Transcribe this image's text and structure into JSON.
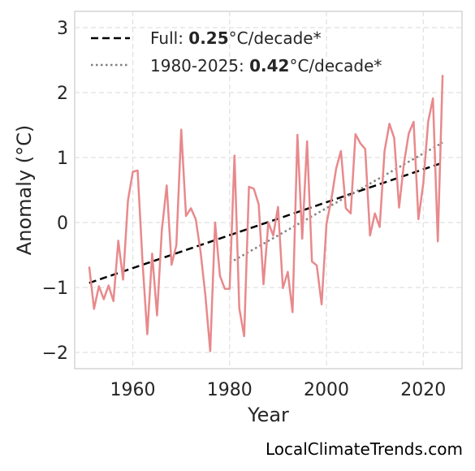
{
  "chart_data": {
    "type": "line",
    "xlabel": "Year",
    "ylabel": "Anomaly (°C)",
    "xlim": [
      1948,
      2028
    ],
    "ylim": [
      -2.25,
      3.25
    ],
    "xticks": [
      1960,
      1980,
      2000,
      2020
    ],
    "xtick_labels": [
      "1960",
      "1980",
      "2000",
      "2020"
    ],
    "yticks": [
      -2,
      -1,
      0,
      1,
      2,
      3
    ],
    "ytick_labels": [
      "−2",
      "−1",
      "0",
      "1",
      "2",
      "3"
    ],
    "grid": true,
    "legend_position": "top-left",
    "series": [
      {
        "color": "#e8898c",
        "x": [
          1951,
          1952,
          1953,
          1954,
          1955,
          1956,
          1957,
          1958,
          1959,
          1960,
          1961,
          1962,
          1963,
          1964,
          1965,
          1966,
          1967,
          1968,
          1969,
          1970,
          1971,
          1972,
          1973,
          1974,
          1975,
          1976,
          1977,
          1978,
          1979,
          1980,
          1981,
          1982,
          1983,
          1984,
          1985,
          1986,
          1987,
          1988,
          1989,
          1990,
          1991,
          1992,
          1993,
          1994,
          1995,
          1996,
          1997,
          1998,
          1999,
          2000,
          2001,
          2002,
          2003,
          2004,
          2005,
          2006,
          2007,
          2008,
          2009,
          2010,
          2011,
          2012,
          2013,
          2014,
          2015,
          2016,
          2017,
          2018,
          2019,
          2020,
          2021,
          2022,
          2023,
          2024
        ],
        "y": [
          -0.68,
          -1.33,
          -0.98,
          -1.18,
          -0.97,
          -1.21,
          -0.28,
          -0.88,
          0.34,
          0.78,
          0.8,
          -0.6,
          -1.72,
          -0.48,
          -1.43,
          -0.12,
          0.57,
          -0.65,
          -0.35,
          1.43,
          0.1,
          0.22,
          0.05,
          -0.45,
          -1.13,
          -1.98,
          0.0,
          -0.82,
          -1.02,
          -1.02,
          1.03,
          -1.32,
          -1.75,
          0.55,
          0.52,
          0.28,
          -0.95,
          0.0,
          -0.2,
          0.24,
          -1.01,
          -0.76,
          -1.38,
          1.35,
          -0.25,
          1.25,
          -0.6,
          -0.66,
          -1.26,
          -0.02,
          0.35,
          0.83,
          1.1,
          0.22,
          0.14,
          1.36,
          1.22,
          1.13,
          -0.2,
          0.14,
          -0.07,
          1.1,
          1.52,
          1.3,
          0.23,
          0.9,
          1.37,
          1.55,
          0.05,
          0.6,
          1.55,
          1.91,
          -0.29,
          2.27
        ]
      }
    ],
    "trend_lines": [
      {
        "style": "dashed",
        "color": "#000000",
        "x": [
          1951,
          2024
        ],
        "y": [
          -0.93,
          0.92
        ],
        "label_prefix": "Full: ",
        "label_value": "0.25",
        "label_suffix": "°C/decade*"
      },
      {
        "style": "dotted",
        "color": "#808080",
        "x": [
          1980,
          2024
        ],
        "y": [
          -0.62,
          1.23
        ],
        "label_prefix": "1980-2025: ",
        "label_value": "0.42",
        "label_suffix": "°C/decade*"
      }
    ]
  },
  "watermark": "LocalClimateTrends.com"
}
